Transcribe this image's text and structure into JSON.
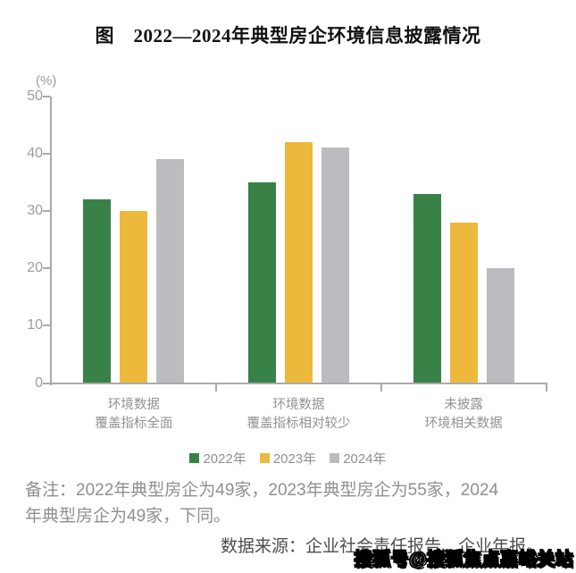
{
  "title": "图　2022—2024年典型房企环境信息披露情况",
  "chart_data": {
    "type": "bar",
    "title": "图　2022—2024年典型房企环境信息披露情况",
    "unit_label": "(%)",
    "xlabel": "",
    "ylabel": "(%)",
    "ylim": [
      0,
      50
    ],
    "yticks": [
      0,
      10,
      20,
      30,
      40,
      50
    ],
    "grid": false,
    "legend_position": "bottom",
    "categories": [
      {
        "lines": [
          "环境数据",
          "覆盖指标全面"
        ]
      },
      {
        "lines": [
          "环境数据",
          "覆盖指标相对较少"
        ]
      },
      {
        "lines": [
          "未披露",
          "环境相关数据"
        ]
      }
    ],
    "series": [
      {
        "name": "2022年",
        "color": "#388248",
        "values": [
          32,
          35,
          33
        ]
      },
      {
        "name": "2023年",
        "color": "#edb93c",
        "values": [
          30,
          42,
          28
        ]
      },
      {
        "name": "2024年",
        "color": "#bcbcc0",
        "values": [
          39,
          41,
          20
        ]
      }
    ]
  },
  "note": {
    "line1": "备注：2022年典型房企为49家，2023年典型房企为55家，2024",
    "line2": "年典型房企为49家，下同。"
  },
  "source": "数据来源：企业社会责任报告、企业年报。",
  "watermark": "搜狐号@搜狐焦点嘉峪关站",
  "colors": {
    "axis": "#aaaaaa",
    "tick_label": "#9c9c9c",
    "category_label": "#919191",
    "legend_label": "#8f8f8f",
    "note_text": "#8f8f8f",
    "source_text": "#4d4d4d",
    "title_text": "#111111"
  }
}
